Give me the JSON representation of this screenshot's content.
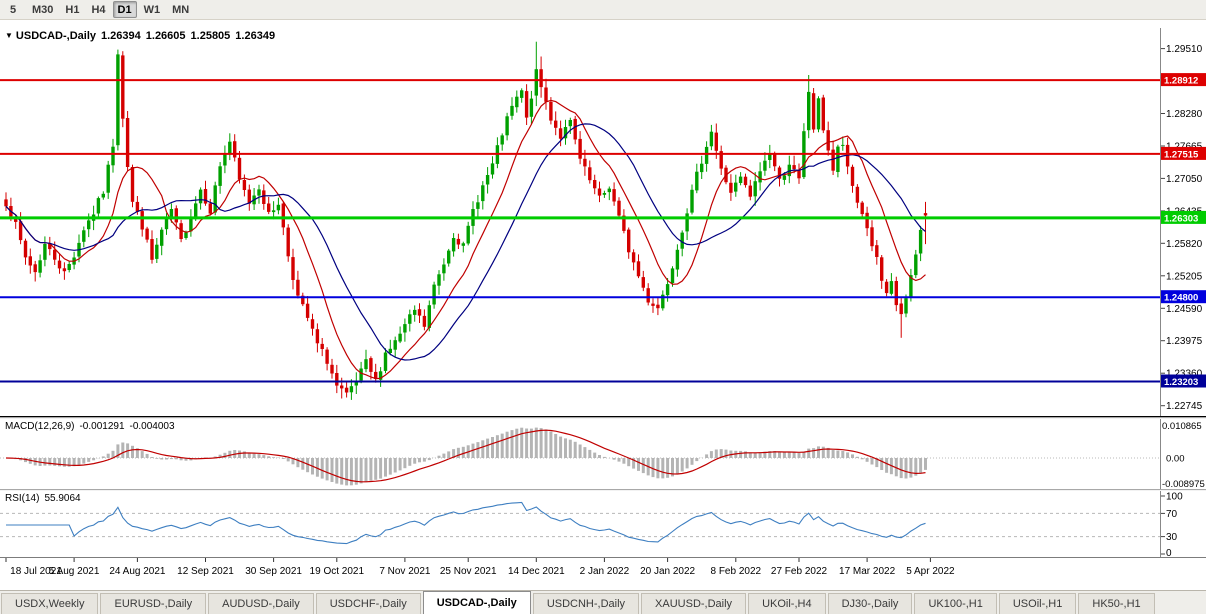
{
  "toolbar": {
    "timeframes": [
      {
        "label": "5",
        "active": false
      },
      {
        "label": "M30",
        "active": false
      },
      {
        "label": "H1",
        "active": false
      },
      {
        "label": "H4",
        "active": false
      },
      {
        "label": "D1",
        "active": true
      },
      {
        "label": "W1",
        "active": false
      },
      {
        "label": "MN",
        "active": false
      }
    ]
  },
  "quote": {
    "symbol_label": "USDCAD-,Daily",
    "open": "1.26394",
    "high": "1.26605",
    "low": "1.25805",
    "close": "1.26349"
  },
  "indicators": {
    "macd": {
      "label": "MACD(12,26,9)",
      "value_main": "-0.001291",
      "value_signal": "-0.004003",
      "axis": {
        "top": "0.010865",
        "zero": "0.00",
        "bottom": "-0.008975"
      }
    },
    "rsi": {
      "label": "RSI(14)",
      "value": "55.9064",
      "axis": [
        "100",
        "70",
        "30",
        "0"
      ],
      "levels": [
        70,
        30
      ]
    }
  },
  "price_axis": {
    "ticks": [
      1.2951,
      1.28895,
      1.2828,
      1.27665,
      1.2705,
      1.26435,
      1.2582,
      1.25205,
      1.2459,
      1.23975,
      1.2336,
      1.22745
    ]
  },
  "hlines": [
    {
      "price": 1.28912,
      "label": "1.28912",
      "color": "#dd0000",
      "width": 2
    },
    {
      "price": 1.27515,
      "label": "1.27515",
      "color": "#dd0000",
      "width": 2
    },
    {
      "price": 1.26303,
      "label": "1.26303",
      "color": "#00cc00",
      "width": 3
    },
    {
      "price": 1.248,
      "label": "1.24800",
      "color": "#0000dd",
      "width": 2
    },
    {
      "price": 1.23203,
      "label": "1.23203",
      "color": "#000099",
      "width": 2
    }
  ],
  "time_axis": {
    "labels": [
      {
        "text": "18 Jul 2021",
        "day": 0
      },
      {
        "text": "5 Aug 2021",
        "day": 14
      },
      {
        "text": "24 Aug 2021",
        "day": 27
      },
      {
        "text": "12 Sep 2021",
        "day": 41
      },
      {
        "text": "30 Sep 2021",
        "day": 55
      },
      {
        "text": "19 Oct 2021",
        "day": 68
      },
      {
        "text": "7 Nov 2021",
        "day": 82
      },
      {
        "text": "25 Nov 2021",
        "day": 95
      },
      {
        "text": "14 Dec 2021",
        "day": 109
      },
      {
        "text": "2 Jan 2022",
        "day": 123
      },
      {
        "text": "20 Jan 2022",
        "day": 136
      },
      {
        "text": "8 Feb 2022",
        "day": 150
      },
      {
        "text": "27 Feb 2022",
        "day": 163
      },
      {
        "text": "17 Mar 2022",
        "day": 177
      },
      {
        "text": "5 Apr 2022",
        "day": 190
      }
    ]
  },
  "tabs": [
    {
      "label": "USDX,Weekly",
      "active": false
    },
    {
      "label": "EURUSD-,Daily",
      "active": false
    },
    {
      "label": "AUDUSD-,Daily",
      "active": false
    },
    {
      "label": "USDCHF-,Daily",
      "active": false
    },
    {
      "label": "USDCAD-,Daily",
      "active": true
    },
    {
      "label": "USDCNH-,Daily",
      "active": false
    },
    {
      "label": "XAUUSD-,Daily",
      "active": false
    },
    {
      "label": "UKOil-,H4",
      "active": false
    },
    {
      "label": "DJ30-,Daily",
      "active": false
    },
    {
      "label": "UK100-,H1",
      "active": false
    },
    {
      "label": "USOil-,H1",
      "active": false
    },
    {
      "label": "HK50-,H1",
      "active": false
    }
  ],
  "colors": {
    "candle_up": "#00a000",
    "candle_down": "#d40000",
    "macd_hist": "#b4b4b4",
    "macd_signal": "#c00000",
    "rsi_line": "#3e7fc1",
    "level_dash": "#b8b8b8"
  },
  "chart_data": {
    "type": "candlestick",
    "symbol": "USDCAD",
    "timeframe": "Daily",
    "bars": 190,
    "price_range": [
      1.2253,
      1.299
    ],
    "last_candle": {
      "open": 1.26394,
      "high": 1.26605,
      "low": 1.25805,
      "close": 1.26349
    },
    "moving_averages": [
      {
        "name": "fast-ma",
        "period": 10,
        "color": "#c00000"
      },
      {
        "name": "slow-ma",
        "period": 21,
        "color": "#000080"
      }
    ],
    "gen_seed": 7,
    "close_path_anchors": [
      [
        0,
        1.266
      ],
      [
        1,
        1.264
      ],
      [
        2,
        1.2615
      ],
      [
        4,
        1.2555
      ],
      [
        6,
        1.2528
      ],
      [
        8,
        1.258
      ],
      [
        10,
        1.2555
      ],
      [
        12,
        1.2525
      ],
      [
        14,
        1.256
      ],
      [
        16,
        1.261
      ],
      [
        18,
        1.264
      ],
      [
        20,
        1.268
      ],
      [
        22,
        1.277
      ],
      [
        23,
        1.294
      ],
      [
        24,
        1.2818
      ],
      [
        25,
        1.273
      ],
      [
        26,
        1.266
      ],
      [
        28,
        1.2615
      ],
      [
        30,
        1.255
      ],
      [
        32,
        1.2605
      ],
      [
        34,
        1.2645
      ],
      [
        36,
        1.2585
      ],
      [
        38,
        1.2635
      ],
      [
        40,
        1.2685
      ],
      [
        42,
        1.2645
      ],
      [
        44,
        1.273
      ],
      [
        46,
        1.2775
      ],
      [
        48,
        1.27
      ],
      [
        50,
        1.266
      ],
      [
        52,
        1.269
      ],
      [
        54,
        1.2635
      ],
      [
        56,
        1.266
      ],
      [
        58,
        1.256
      ],
      [
        60,
        1.248
      ],
      [
        62,
        1.244
      ],
      [
        64,
        1.239
      ],
      [
        66,
        1.236
      ],
      [
        68,
        1.231
      ],
      [
        70,
        1.2292
      ],
      [
        72,
        1.232
      ],
      [
        74,
        1.2355
      ],
      [
        76,
        1.232
      ],
      [
        78,
        1.2375
      ],
      [
        80,
        1.2395
      ],
      [
        82,
        1.2425
      ],
      [
        84,
        1.2455
      ],
      [
        86,
        1.2425
      ],
      [
        88,
        1.25
      ],
      [
        90,
        1.2545
      ],
      [
        92,
        1.26
      ],
      [
        94,
        1.2575
      ],
      [
        96,
        1.2645
      ],
      [
        98,
        1.269
      ],
      [
        100,
        1.273
      ],
      [
        102,
        1.279
      ],
      [
        104,
        1.284
      ],
      [
        106,
        1.287
      ],
      [
        107,
        1.2815
      ],
      [
        108,
        1.2862
      ],
      [
        109,
        1.2912
      ],
      [
        110,
        1.2878
      ],
      [
        112,
        1.282
      ],
      [
        114,
        1.2785
      ],
      [
        116,
        1.281
      ],
      [
        118,
        1.274
      ],
      [
        120,
        1.27
      ],
      [
        122,
        1.2665
      ],
      [
        124,
        1.269
      ],
      [
        126,
        1.263
      ],
      [
        128,
        1.257
      ],
      [
        130,
        1.252
      ],
      [
        132,
        1.2475
      ],
      [
        134,
        1.246
      ],
      [
        136,
        1.251
      ],
      [
        138,
        1.2575
      ],
      [
        140,
        1.2645
      ],
      [
        142,
        1.271
      ],
      [
        144,
        1.277
      ],
      [
        145,
        1.2795
      ],
      [
        147,
        1.272
      ],
      [
        149,
        1.268
      ],
      [
        151,
        1.2705
      ],
      [
        153,
        1.267
      ],
      [
        155,
        1.272
      ],
      [
        157,
        1.2755
      ],
      [
        159,
        1.27
      ],
      [
        161,
        1.2735
      ],
      [
        163,
        1.27
      ],
      [
        164,
        1.279
      ],
      [
        165,
        1.287
      ],
      [
        166,
        1.28
      ],
      [
        167,
        1.285
      ],
      [
        168,
        1.28
      ],
      [
        169,
        1.276
      ],
      [
        170,
        1.272
      ],
      [
        171,
        1.276
      ],
      [
        172,
        1.277
      ],
      [
        173,
        1.272
      ],
      [
        174,
        1.269
      ],
      [
        175,
        1.266
      ],
      [
        176,
        1.264
      ],
      [
        177,
        1.261
      ],
      [
        178,
        1.258
      ],
      [
        179,
        1.255
      ],
      [
        180,
        1.251
      ],
      [
        181,
        1.248
      ],
      [
        182,
        1.2505
      ],
      [
        183,
        1.2465
      ],
      [
        184,
        1.2448
      ],
      [
        185,
        1.2475
      ],
      [
        186,
        1.2515
      ],
      [
        187,
        1.256
      ],
      [
        188,
        1.2605
      ],
      [
        189,
        1.26349
      ]
    ],
    "key_candles": [
      {
        "i": 23,
        "o": 1.2768,
        "h": 1.2949,
        "l": 1.2758,
        "c": 1.294
      },
      {
        "i": 24,
        "o": 1.2938,
        "h": 1.2946,
        "l": 1.2802,
        "c": 1.2818
      },
      {
        "i": 69,
        "l": 1.2288
      },
      {
        "i": 70,
        "l": 1.229
      },
      {
        "i": 109,
        "o": 1.2862,
        "h": 1.2964,
        "l": 1.2842,
        "c": 1.2912
      },
      {
        "i": 110,
        "o": 1.2912,
        "h": 1.2936,
        "l": 1.2858,
        "c": 1.2878
      },
      {
        "i": 165,
        "h": 1.2901
      },
      {
        "i": 184,
        "o": 1.2468,
        "h": 1.2478,
        "l": 1.2403,
        "c": 1.2448
      },
      {
        "i": 189,
        "o": 1.26394,
        "h": 1.26605,
        "l": 1.25805,
        "c": 1.26349
      }
    ]
  }
}
